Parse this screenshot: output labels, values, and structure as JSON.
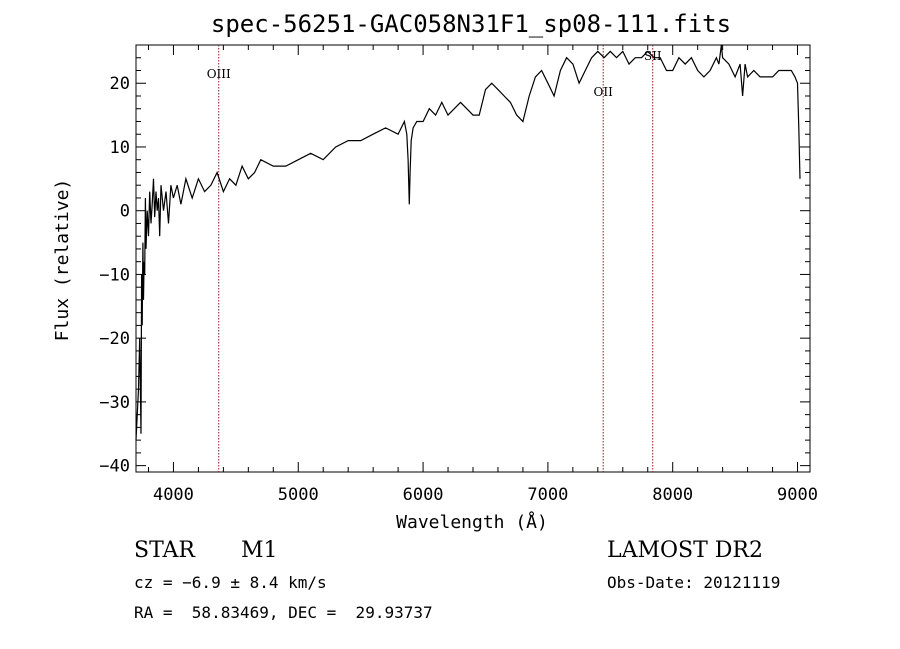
{
  "chart_data": {
    "type": "line",
    "title": "spec-56251-GAC058N31F1_sp08-111.fits",
    "xlabel": "Wavelength (Å)",
    "ylabel": "Flux (relative)",
    "xlim": [
      3700,
      9100
    ],
    "ylim": [
      -41,
      26
    ],
    "xticks": [
      4000,
      5000,
      6000,
      7000,
      8000,
      9000
    ],
    "yticks": [
      -40,
      -30,
      -20,
      -10,
      0,
      10,
      20
    ],
    "grid": false,
    "line_color": "#000000",
    "marker_color": "#8b1a1a",
    "spectral_lines": [
      {
        "label": "OIII",
        "x": 4363
      },
      {
        "label": "OII",
        "x": 7443
      },
      {
        "label": "SII",
        "x": 7840
      }
    ],
    "series": [
      {
        "x": [
          3700,
          3720,
          3730,
          3740,
          3745,
          3750,
          3755,
          3760,
          3765,
          3770,
          3775,
          3780,
          3790,
          3800,
          3810,
          3820,
          3830,
          3840,
          3850,
          3860,
          3870,
          3880,
          3890,
          3900,
          3920,
          3940,
          3960,
          3980,
          4000,
          4030,
          4060,
          4100,
          4150,
          4200,
          4250,
          4300,
          4350,
          4400,
          4450,
          4500,
          4550,
          4600,
          4650,
          4700,
          4800,
          4900,
          5000,
          5100,
          5200,
          5300,
          5400,
          5500,
          5600,
          5700,
          5800,
          5850,
          5870,
          5880,
          5890,
          5896,
          5905,
          5920,
          5950,
          6000,
          6050,
          6100,
          6150,
          6200,
          6250,
          6300,
          6350,
          6400,
          6450,
          6500,
          6550,
          6600,
          6650,
          6700,
          6750,
          6800,
          6850,
          6900,
          6950,
          7000,
          7050,
          7100,
          7150,
          7200,
          7250,
          7300,
          7350,
          7400,
          7450,
          7500,
          7550,
          7600,
          7650,
          7700,
          7750,
          7800,
          7850,
          7900,
          7950,
          8000,
          8050,
          8100,
          8150,
          8200,
          8250,
          8300,
          8350,
          8370,
          8390,
          8400,
          8450,
          8500,
          8540,
          8560,
          8580,
          8600,
          8650,
          8700,
          8750,
          8800,
          8850,
          8900,
          8950,
          8980,
          9000,
          9010,
          9020
        ],
        "y": [
          -36,
          -28,
          -20,
          -35,
          -10,
          -18,
          -5,
          -14,
          -8,
          -10,
          2,
          -6,
          0,
          -4,
          3,
          -2,
          1,
          5,
          -1,
          3,
          0,
          2,
          -4,
          4,
          0,
          3,
          -2,
          4,
          2,
          4,
          1,
          5,
          2,
          5,
          3,
          4,
          6,
          3,
          5,
          4,
          7,
          5,
          6,
          8,
          7,
          7,
          8,
          9,
          8,
          10,
          11,
          11,
          12,
          13,
          12,
          14,
          12,
          8,
          1,
          6,
          11,
          13,
          14,
          14,
          16,
          15,
          17,
          15,
          16,
          17,
          16,
          15,
          15,
          19,
          20,
          19,
          18,
          17,
          15,
          14,
          18,
          21,
          22,
          20,
          18,
          22,
          24,
          23,
          20,
          22,
          24,
          25,
          24,
          25,
          24,
          25,
          23,
          24,
          24,
          25,
          24,
          24,
          22,
          22,
          24,
          23,
          24,
          22,
          21,
          22,
          24,
          23,
          26,
          24,
          23,
          21,
          23,
          18,
          23,
          21,
          22,
          21,
          21,
          21,
          22,
          22,
          22,
          21,
          20,
          13,
          5
        ]
      }
    ]
  },
  "info": {
    "object_type": "STAR",
    "subclass": "M1",
    "cz": "cz = −6.9 ± 8.4 km/s",
    "coords": "RA =  58.83469, DEC =  29.93737",
    "survey": "LAMOST DR2",
    "obs_date": "Obs-Date: 20121119"
  }
}
